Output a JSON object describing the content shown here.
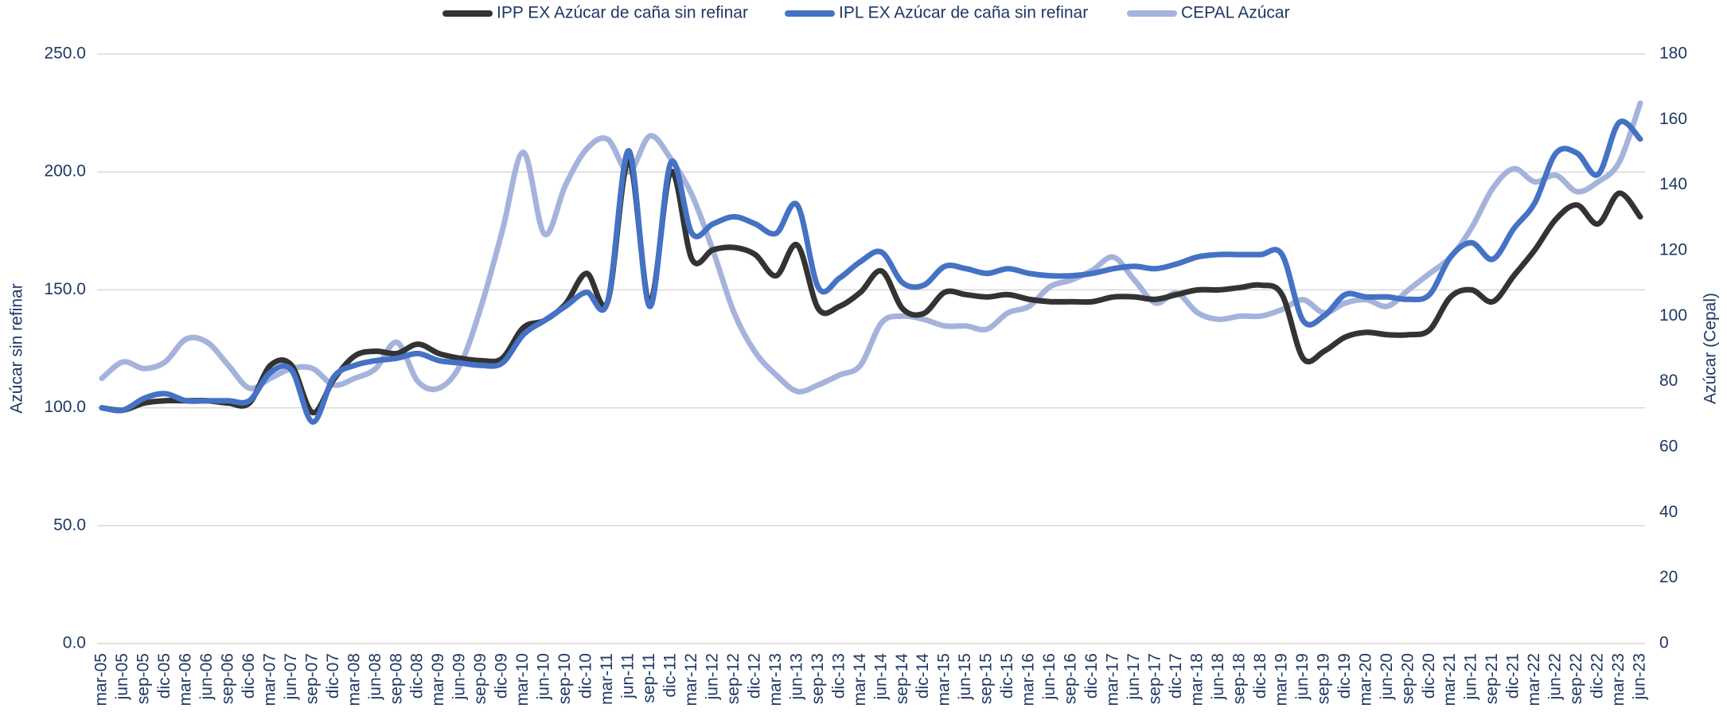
{
  "chart_data": {
    "type": "line",
    "y_label": "Azúcar sin refinar",
    "y2_label": "Azúcar (Cepal)",
    "categories": [
      "mar-05",
      "jun-05",
      "sep-05",
      "dic-05",
      "mar-06",
      "jun-06",
      "sep-06",
      "dic-06",
      "mar-07",
      "jun-07",
      "sep-07",
      "dic-07",
      "mar-08",
      "jun-08",
      "sep-08",
      "dic-08",
      "mar-09",
      "jun-09",
      "sep-09",
      "dic-09",
      "mar-10",
      "jun-10",
      "sep-10",
      "dic-10",
      "mar-11",
      "jun-11",
      "sep-11",
      "dic-11",
      "mar-12",
      "jun-12",
      "sep-12",
      "dic-12",
      "mar-13",
      "jun-13",
      "sep-13",
      "dic-13",
      "mar-14",
      "jun-14",
      "sep-14",
      "dic-14",
      "mar-15",
      "jun-15",
      "sep-15",
      "dic-15",
      "mar-16",
      "jun-16",
      "sep-16",
      "dic-16",
      "mar-17",
      "jun-17",
      "sep-17",
      "dic-17",
      "mar-18",
      "jun-18",
      "sep-18",
      "dic-18",
      "mar-19",
      "jun-19",
      "sep-19",
      "dic-19",
      "mar-20",
      "jun-20",
      "sep-20",
      "dic-20",
      "mar-21",
      "jun-21",
      "sep-21",
      "dic-21",
      "mar-22",
      "jun-22",
      "sep-22",
      "dic-22",
      "mar-23",
      "jun-23"
    ],
    "series": [
      {
        "name": "IPP EX Azúcar de caña sin refinar",
        "color": "#333333",
        "values": [
          100,
          99,
          102,
          103,
          103,
          103,
          102,
          102,
          118,
          118,
          98,
          112,
          122,
          124,
          123,
          127,
          123,
          121,
          120,
          121,
          134,
          137,
          144,
          157,
          145,
          205,
          145,
          200,
          163,
          167,
          168,
          165,
          156,
          169,
          142,
          143,
          149,
          158,
          142,
          140,
          149,
          148,
          147,
          148,
          146,
          145,
          145,
          145,
          147,
          147,
          146,
          148,
          150,
          150,
          151,
          152,
          148,
          121,
          124,
          130,
          132,
          131,
          131,
          133,
          147,
          150,
          145,
          156,
          167,
          180,
          186,
          178,
          191,
          181
        ]
      },
      {
        "name": "IPL EX Azúcar de caña sin refinar",
        "color": "#4472c4",
        "values": [
          100,
          99,
          104,
          106,
          103,
          103,
          103,
          103,
          115,
          116,
          94,
          113,
          118,
          120,
          121,
          123,
          120,
          119,
          118,
          119,
          131,
          137,
          143,
          149,
          145,
          209,
          143,
          204,
          174,
          178,
          181,
          178,
          174,
          186,
          151,
          155,
          162,
          166,
          153,
          152,
          160,
          159,
          157,
          159,
          157,
          156,
          156,
          157,
          159,
          160,
          159,
          161,
          164,
          165,
          165,
          165,
          165,
          137,
          139,
          148,
          147,
          147,
          146,
          148,
          164,
          170,
          163,
          176,
          187,
          208,
          208,
          199,
          221,
          214
        ]
      },
      {
        "name": "CEPAL Azúcar",
        "color": "#a5b3dc",
        "axis": "y2",
        "values": [
          81,
          86,
          84,
          86,
          93,
          92,
          85,
          78,
          81,
          84,
          84,
          79,
          81,
          84,
          92,
          80,
          78,
          85,
          103,
          126,
          150,
          125,
          140,
          151,
          154,
          144,
          155,
          148,
          137,
          120,
          101,
          89,
          82,
          77,
          79,
          82,
          85,
          98,
          100,
          99,
          97,
          97,
          96,
          101,
          103,
          109,
          111,
          114,
          118,
          111,
          104,
          107,
          101,
          99,
          100,
          100,
          102,
          105,
          101,
          104,
          105,
          103,
          108,
          113,
          118,
          127,
          139,
          145,
          141,
          143,
          138,
          141,
          147,
          165
        ]
      }
    ],
    "ylim": [
      0,
      250
    ],
    "yticks": [
      {
        "value": 0,
        "label": "0.0"
      },
      {
        "value": 50,
        "label": "50.0"
      },
      {
        "value": 100,
        "label": "100.0"
      },
      {
        "value": 150,
        "label": "150.0"
      },
      {
        "value": 200,
        "label": "200.0"
      },
      {
        "value": 250,
        "label": "250.0"
      }
    ],
    "y2lim": [
      0,
      180
    ],
    "y2ticks": [
      0,
      20,
      40,
      60,
      80,
      100,
      120,
      140,
      160,
      180
    ],
    "grid": true,
    "legend": "top"
  }
}
